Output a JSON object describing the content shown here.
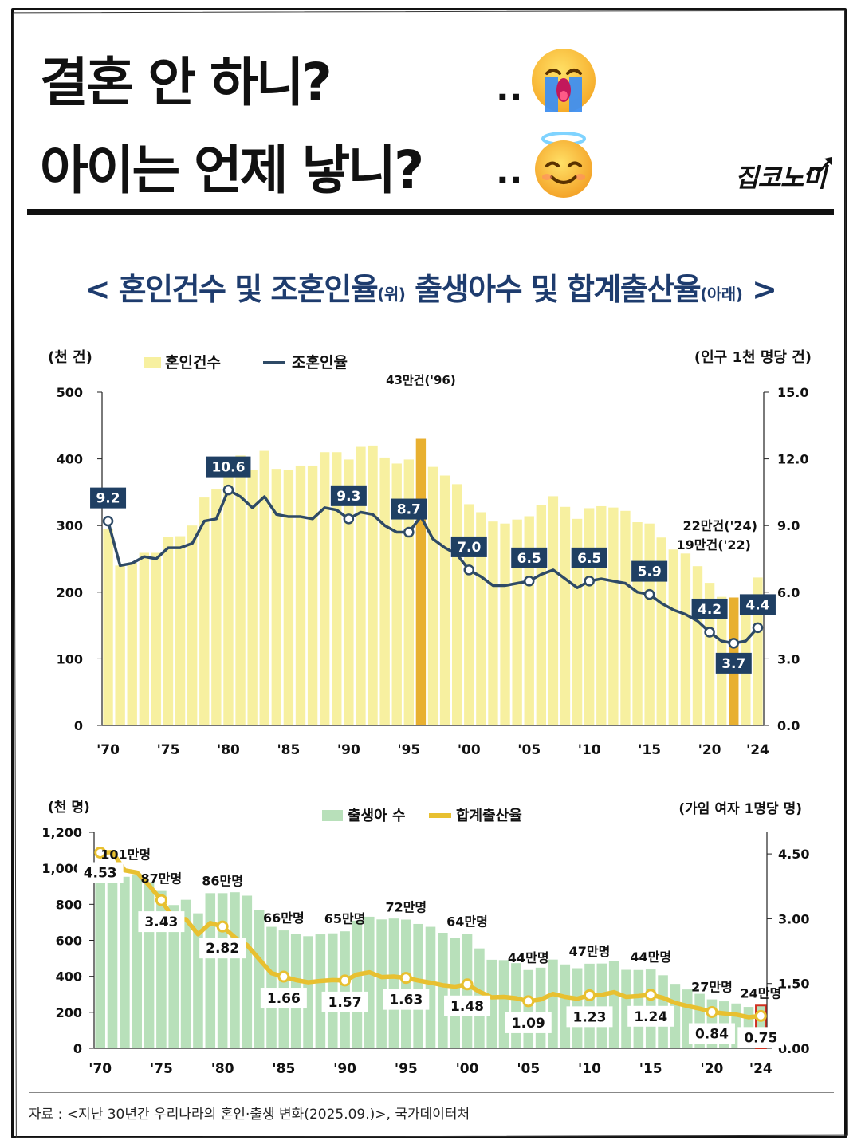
{
  "headline": {
    "line1": "결혼 안 하니?",
    "line2": "아이는 언제 낳니?",
    "dots1": "..",
    "dots2": "..",
    "emoji1": "crying-face",
    "emoji2": "smiling-face-with-halo"
  },
  "brand": "집코노미",
  "subtitle": {
    "open": "< ",
    "part1": "혼인건수 및 조혼인율",
    "part1_note": "(위)",
    "part2": " 출생아수 및 합계출산율",
    "part2_note": "(아래)",
    "close": " >"
  },
  "colors": {
    "marriage_bar": "#F7F0A0",
    "marriage_highlight": "#E8B030",
    "marriage_line": "#2E4A66",
    "label_box": "#1F3F63",
    "births_bar": "#B8E0BA",
    "tfr_line": "#E8C030",
    "accent_red": "#D03020"
  },
  "chart_data": [
    {
      "type": "bar+line",
      "title": "혼인건수 및 조혼인율",
      "left_unit": "(천 건)",
      "right_unit": "(인구 1천 명당 건)",
      "legend": [
        "혼인건수",
        "조혼인율"
      ],
      "x_ticks": [
        "'70",
        "'75",
        "'80",
        "'85",
        "'90",
        "'95",
        "'00",
        "'05",
        "'10",
        "'15",
        "'20",
        "'24"
      ],
      "years": [
        1970,
        1971,
        1972,
        1973,
        1974,
        1975,
        1976,
        1977,
        1978,
        1979,
        1980,
        1981,
        1982,
        1983,
        1984,
        1985,
        1986,
        1987,
        1988,
        1989,
        1990,
        1991,
        1992,
        1993,
        1994,
        1995,
        1996,
        1997,
        1998,
        1999,
        2000,
        2001,
        2002,
        2003,
        2004,
        2005,
        2006,
        2007,
        2008,
        2009,
        2010,
        2011,
        2012,
        2013,
        2014,
        2015,
        2016,
        2017,
        2018,
        2019,
        2020,
        2021,
        2022,
        2023,
        2024
      ],
      "marriages_thousand": [
        295,
        240,
        244,
        259,
        259,
        283,
        284,
        300,
        342,
        354,
        403,
        405,
        384,
        412,
        385,
        384,
        390,
        390,
        410,
        410,
        399,
        418,
        420,
        402,
        393,
        399,
        430,
        388,
        375,
        362,
        332,
        320,
        306,
        303,
        309,
        314,
        331,
        344,
        328,
        310,
        326,
        329,
        327,
        322,
        305,
        303,
        282,
        264,
        258,
        239,
        214,
        193,
        192,
        194,
        222
      ],
      "crude_rate": [
        9.2,
        7.2,
        7.3,
        7.6,
        7.5,
        8.0,
        8.0,
        8.2,
        9.2,
        9.3,
        10.6,
        10.3,
        9.8,
        10.3,
        9.5,
        9.4,
        9.4,
        9.3,
        9.8,
        9.7,
        9.3,
        9.6,
        9.5,
        9.0,
        8.7,
        8.7,
        9.4,
        8.4,
        8.0,
        7.7,
        7.0,
        6.7,
        6.3,
        6.3,
        6.4,
        6.5,
        6.8,
        7.0,
        6.6,
        6.2,
        6.5,
        6.6,
        6.5,
        6.4,
        6.0,
        5.9,
        5.5,
        5.2,
        5.0,
        4.7,
        4.2,
        3.8,
        3.7,
        3.8,
        4.4
      ],
      "highlight_years": [
        1996,
        2022
      ],
      "rate_labels": [
        {
          "year": 1970,
          "text": "9.2"
        },
        {
          "year": 1980,
          "text": "10.6"
        },
        {
          "year": 1990,
          "text": "9.3"
        },
        {
          "year": 1995,
          "text": "8.7"
        },
        {
          "year": 2000,
          "text": "7.0"
        },
        {
          "year": 2005,
          "text": "6.5"
        },
        {
          "year": 2010,
          "text": "6.5"
        },
        {
          "year": 2015,
          "text": "5.9"
        },
        {
          "year": 2020,
          "text": "4.2"
        },
        {
          "year": 2022,
          "text": "3.7"
        },
        {
          "year": 2024,
          "text": "4.4"
        }
      ],
      "annotations": [
        "43만건('96)",
        "22만건('24)",
        "19만건('22)"
      ],
      "ylim_left": [
        0,
        500
      ],
      "yticks_left": [
        "0",
        "100",
        "200",
        "300",
        "400",
        "500"
      ],
      "ylim_right": [
        0,
        15
      ],
      "yticks_right": [
        "0.0",
        "3.0",
        "6.0",
        "9.0",
        "12.0",
        "15.0"
      ]
    },
    {
      "type": "bar+line",
      "title": "출생아수 및 합계출산율",
      "left_unit": "(천 명)",
      "right_unit": "(가임 여자 1명당 명)",
      "legend": [
        "출생아 수",
        "합계출산율"
      ],
      "x_ticks": [
        "'70",
        "'75",
        "'80",
        "'85",
        "'90",
        "'95",
        "'00",
        "'05",
        "'10",
        "'15",
        "'20",
        "'24"
      ],
      "years": [
        1970,
        1971,
        1972,
        1973,
        1974,
        1975,
        1976,
        1977,
        1978,
        1979,
        1980,
        1981,
        1982,
        1983,
        1984,
        1985,
        1986,
        1987,
        1988,
        1989,
        1990,
        1991,
        1992,
        1993,
        1994,
        1995,
        1996,
        1997,
        1998,
        1999,
        2000,
        2001,
        2002,
        2003,
        2004,
        2005,
        2006,
        2007,
        2008,
        2009,
        2010,
        2011,
        2012,
        2013,
        2014,
        2015,
        2016,
        2017,
        2018,
        2019,
        2020,
        2021,
        2022,
        2023,
        2024
      ],
      "births_thousand": [
        1007,
        1025,
        953,
        966,
        923,
        874,
        796,
        825,
        750,
        862,
        862,
        867,
        848,
        769,
        675,
        655,
        636,
        623,
        633,
        639,
        650,
        709,
        731,
        716,
        721,
        715,
        691,
        675,
        642,
        614,
        635,
        555,
        492,
        490,
        473,
        435,
        448,
        493,
        466,
        445,
        470,
        471,
        485,
        436,
        435,
        438,
        406,
        358,
        327,
        303,
        272,
        261,
        249,
        230,
        238
      ],
      "tfr": [
        4.53,
        4.54,
        4.12,
        4.07,
        3.77,
        3.43,
        3.0,
        2.99,
        2.64,
        2.9,
        2.82,
        2.57,
        2.39,
        2.06,
        1.74,
        1.66,
        1.58,
        1.53,
        1.56,
        1.58,
        1.57,
        1.71,
        1.76,
        1.65,
        1.66,
        1.63,
        1.57,
        1.52,
        1.46,
        1.43,
        1.48,
        1.31,
        1.18,
        1.19,
        1.16,
        1.09,
        1.13,
        1.26,
        1.19,
        1.15,
        1.23,
        1.24,
        1.3,
        1.19,
        1.21,
        1.24,
        1.17,
        1.05,
        0.98,
        0.92,
        0.84,
        0.81,
        0.78,
        0.72,
        0.75
      ],
      "tfr_labels": [
        {
          "year": 1970,
          "text": "4.53"
        },
        {
          "year": 1975,
          "text": "3.43"
        },
        {
          "year": 1980,
          "text": "2.82"
        },
        {
          "year": 1985,
          "text": "1.66"
        },
        {
          "year": 1990,
          "text": "1.57"
        },
        {
          "year": 1995,
          "text": "1.63"
        },
        {
          "year": 2000,
          "text": "1.48"
        },
        {
          "year": 2005,
          "text": "1.09"
        },
        {
          "year": 2010,
          "text": "1.23"
        },
        {
          "year": 2015,
          "text": "1.24"
        },
        {
          "year": 2020,
          "text": "0.84"
        },
        {
          "year": 2024,
          "text": "0.75"
        }
      ],
      "birth_labels": [
        {
          "year": 1970,
          "text": "101만명"
        },
        {
          "year": 1975,
          "text": "87만명"
        },
        {
          "year": 1980,
          "text": "86만명"
        },
        {
          "year": 1985,
          "text": "66만명"
        },
        {
          "year": 1990,
          "text": "65만명"
        },
        {
          "year": 1995,
          "text": "72만명"
        },
        {
          "year": 2000,
          "text": "64만명"
        },
        {
          "year": 2005,
          "text": "44만명"
        },
        {
          "year": 2010,
          "text": "47만명"
        },
        {
          "year": 2015,
          "text": "44만명"
        },
        {
          "year": 2020,
          "text": "27만명"
        },
        {
          "year": 2024,
          "text": "24만명"
        }
      ],
      "ylim_left": [
        0,
        1200
      ],
      "yticks_left": [
        "0",
        "200",
        "400",
        "600",
        "800",
        "1,000",
        "1,200"
      ],
      "ylim_right": [
        0,
        5
      ],
      "yticks_right": [
        "0.00",
        "1.50",
        "3.00",
        "4.50"
      ]
    }
  ],
  "source": "자료 : <지난 30년간 우리나라의 혼인·출생 변화(2025.09.)>, 국가데이터처"
}
